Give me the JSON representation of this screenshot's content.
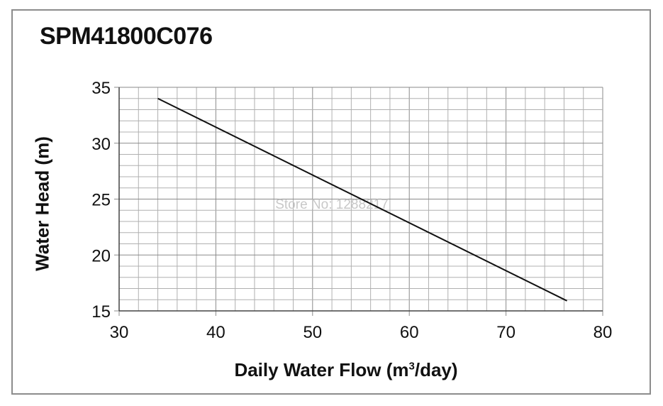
{
  "chart_data": {
    "type": "line",
    "title": "SPM41800C076",
    "xlabel_main": "Daily Water Flow (m",
    "xlabel_sup": "3",
    "xlabel_end": "/day)",
    "ylabel": "Water Head (m)",
    "xlim": [
      30,
      80
    ],
    "ylim": [
      15,
      35
    ],
    "xticks": [
      30,
      40,
      50,
      60,
      70,
      80
    ],
    "yticks": [
      15,
      20,
      25,
      30,
      35
    ],
    "x_minor_step": 2,
    "y_minor_step": 1,
    "grid": true,
    "series": [
      {
        "x": [
          34.0,
          76.3
        ],
        "y": [
          34.0,
          15.9
        ]
      }
    ],
    "line_color": "#111111",
    "grid_color": "#b0b0b0"
  },
  "watermark": "Store No: 1288217"
}
